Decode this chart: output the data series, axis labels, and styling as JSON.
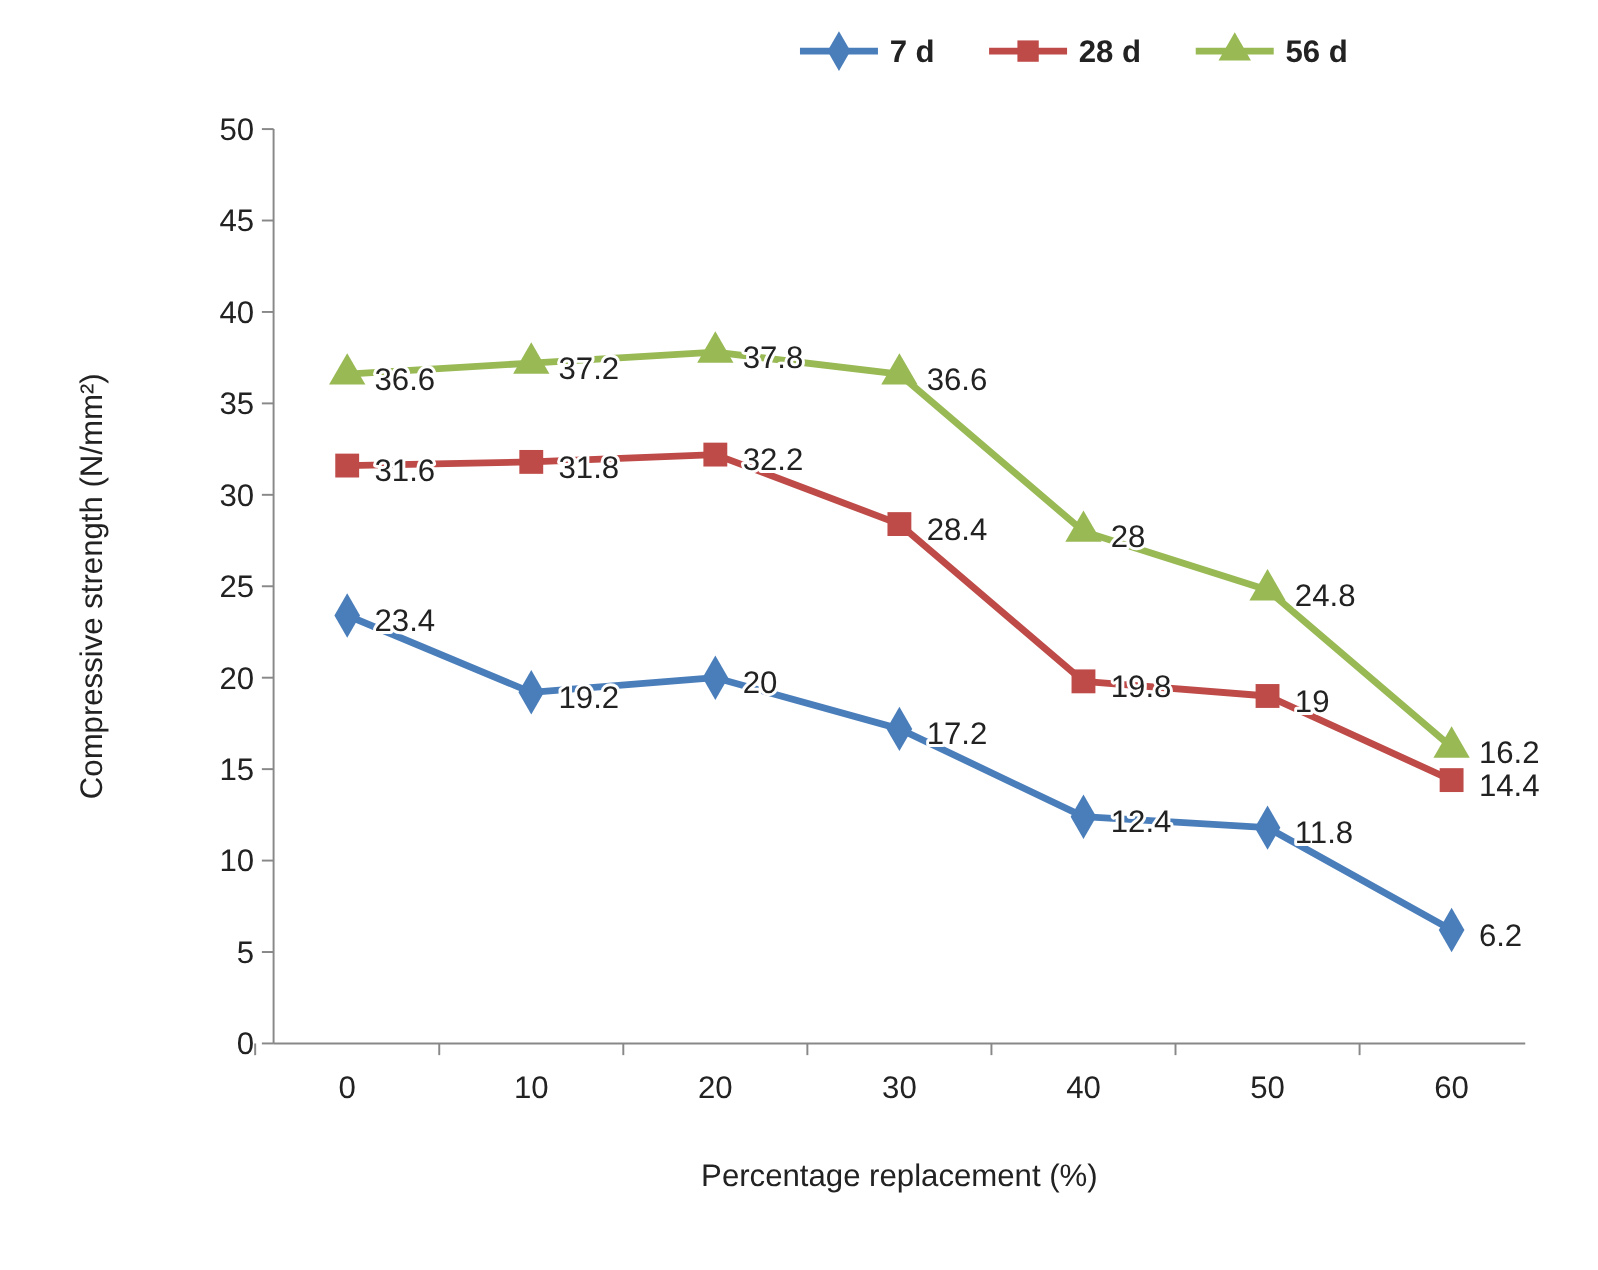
{
  "chart_data": {
    "type": "line",
    "xlabel": "Percentage replacement (%)",
    "ylabel": "Compressive strength (N/mm²)",
    "categories": [
      "0",
      "10",
      "20",
      "30",
      "40",
      "50",
      "60"
    ],
    "series": [
      {
        "name": "7 d",
        "color": "#4a7ebb",
        "marker": "diamond",
        "values": [
          23.4,
          19.2,
          20,
          17.2,
          12.4,
          11.8,
          6.2
        ]
      },
      {
        "name": "28 d",
        "color": "#be4b48",
        "marker": "square",
        "values": [
          31.6,
          31.8,
          32.2,
          28.4,
          19.8,
          19,
          14.4
        ]
      },
      {
        "name": "56 d",
        "color": "#98b954",
        "marker": "triangle",
        "values": [
          36.6,
          37.2,
          37.8,
          36.6,
          28,
          24.8,
          16.2
        ]
      }
    ],
    "ylim": [
      0,
      50
    ],
    "yticks": [
      0,
      5,
      10,
      15,
      20,
      25,
      30,
      35,
      40,
      45,
      50
    ],
    "data_labels": true,
    "legend": "top right",
    "grid": false
  }
}
